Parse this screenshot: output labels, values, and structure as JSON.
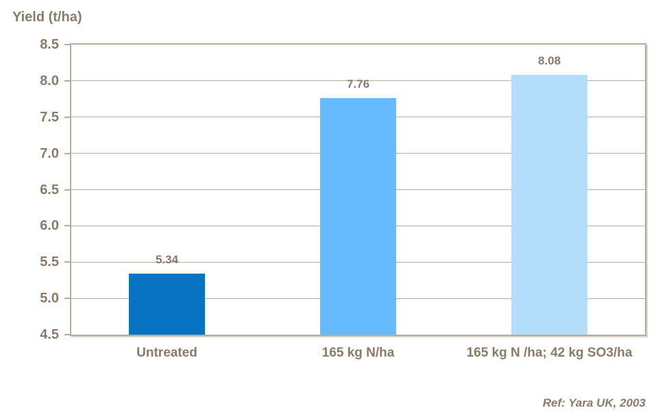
{
  "chart_data": {
    "type": "bar",
    "title": "Yield (t/ha)",
    "categories": [
      "Untreated",
      "165 kg N/ha",
      "165 kg N /ha; 42 kg SO3/ha"
    ],
    "values": [
      5.34,
      7.76,
      8.08
    ],
    "value_labels": [
      "5.34",
      "7.76",
      "8.08"
    ],
    "bar_colors": [
      "#0a73c4",
      "#66bbfc",
      "#b5defc"
    ],
    "ylim": [
      4.5,
      8.5
    ],
    "y_tick_step": 0.5,
    "y_ticks": [
      "4.5",
      "5.0",
      "5.5",
      "6.0",
      "6.5",
      "7.0",
      "7.5",
      "8.0",
      "8.5"
    ],
    "grid": true,
    "legend": "none",
    "xlabel": "",
    "ylabel": "",
    "annotation": "Ref: Yara UK, 2003",
    "text_color": "#8a7a68",
    "grid_color": "#b5ada1",
    "border_color": "#b2aba0"
  }
}
